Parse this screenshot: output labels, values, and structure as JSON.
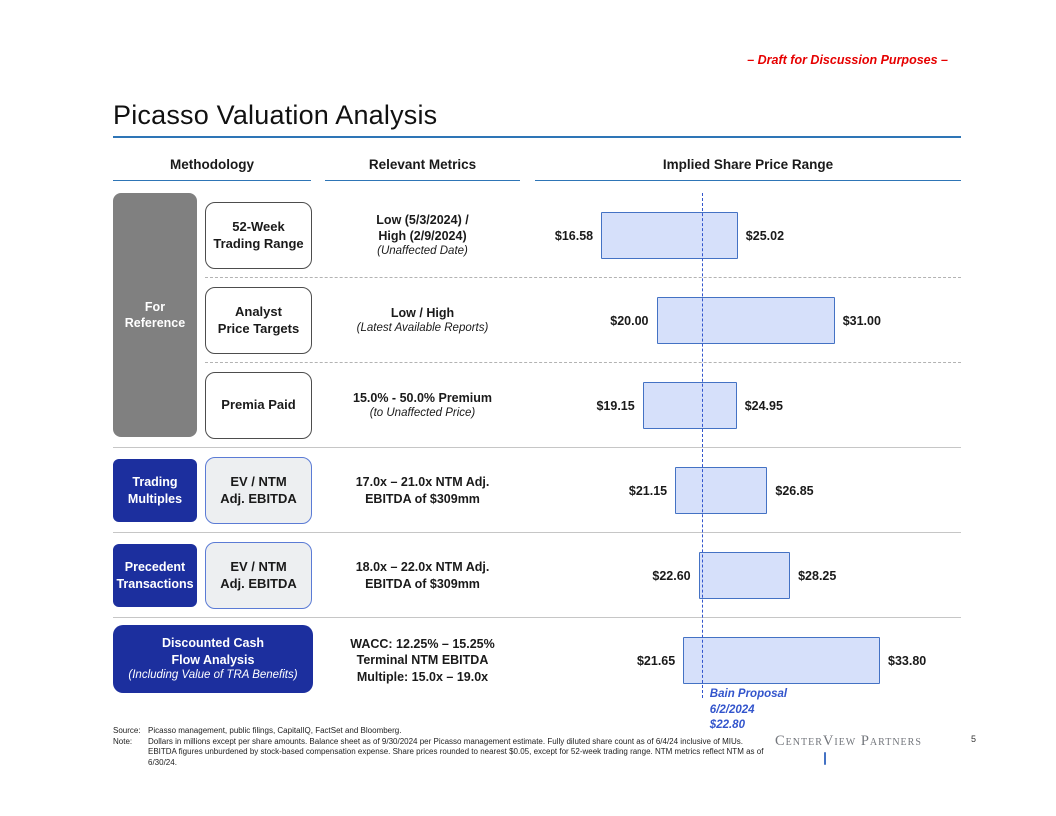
{
  "page": {
    "draft_notice": "– Draft for Discussion Purposes –",
    "title": "Picasso Valuation Analysis",
    "page_number": "5"
  },
  "columns": {
    "methodology": "Methodology",
    "metrics": "Relevant Metrics",
    "range": "Implied Share Price Range"
  },
  "for_reference_label": "For\nReference",
  "rows": [
    {
      "group": "For Reference",
      "method": "52-Week\nTrading Range",
      "metric_main": "Low (5/3/2024) /\nHigh (2/9/2024)",
      "metric_sub": "(Unaffected Date)",
      "low_label": "$16.58",
      "high_label": "$25.02"
    },
    {
      "group": "For Reference",
      "method": "Analyst\nPrice Targets",
      "metric_main": "Low / High",
      "metric_sub": "(Latest Available Reports)",
      "low_label": "$20.00",
      "high_label": "$31.00"
    },
    {
      "group": "For Reference",
      "method": "Premia Paid",
      "metric_main": "15.0% - 50.0% Premium",
      "metric_sub": "(to Unaffected Price)",
      "low_label": "$19.15",
      "high_label": "$24.95"
    },
    {
      "category": "Trading\nMultiples",
      "method": "EV / NTM\nAdj. EBITDA",
      "metric_main": "17.0x – 21.0x NTM Adj.\nEBITDA of $309mm",
      "low_label": "$21.15",
      "high_label": "$26.85"
    },
    {
      "category": "Precedent\nTransactions",
      "method": "EV / NTM\nAdj. EBITDA",
      "metric_main": "18.0x – 22.0x NTM Adj.\nEBITDA of $309mm",
      "low_label": "$22.60",
      "high_label": "$28.25"
    },
    {
      "category_main": "Discounted Cash\nFlow Analysis",
      "category_sub": "(Including Value of TRA Benefits)",
      "metric_main": "WACC: 12.25% – 15.25%\nTerminal NTM EBITDA\nMultiple: 15.0x – 19.0x",
      "low_label": "$21.65",
      "high_label": "$33.80"
    }
  ],
  "chart_data": {
    "type": "bar",
    "subtype": "horizontal-range-football-field",
    "title": "Implied Share Price Range",
    "unit": "$ per share",
    "axis_min": 12.5,
    "axis_max": 38.8,
    "grid": false,
    "categories": [
      "52-Week Trading Range",
      "Analyst Price Targets",
      "Premia Paid",
      "Trading Multiples (EV / NTM Adj. EBITDA)",
      "Precedent Transactions (EV / NTM Adj. EBITDA)",
      "Discounted Cash Flow Analysis"
    ],
    "series": [
      {
        "name": "Implied Share Price Range",
        "ranges": [
          [
            16.58,
            25.02
          ],
          [
            20.0,
            31.0
          ],
          [
            19.15,
            24.95
          ],
          [
            21.15,
            26.85
          ],
          [
            22.6,
            28.25
          ],
          [
            21.65,
            33.8
          ]
        ]
      }
    ],
    "reference_line": {
      "label": "Bain Proposal",
      "date": "6/2/2024",
      "value": 22.8,
      "value_label": "$22.80"
    }
  },
  "footnotes": {
    "source_label": "Source:",
    "source_text": "Picasso management, public filings, CapitalIQ, FactSet and Bloomberg.",
    "note_label": "Note:",
    "note_text": "Dollars in millions except per share amounts. Balance sheet as of 9/30/2024 per Picasso management estimate. Fully diluted share count as of 6/4/24 inclusive of MIUs. EBITDA figures unburdened by stock-based compensation expense. Share prices rounded to nearest $0.05, except for 52-week trading range. NTM metrics reflect NTM as of 6/30/24."
  },
  "logo": {
    "part1": "Center",
    "part2": "View Partners"
  },
  "colors": {
    "accent_blue": "#2e75b6",
    "dark_blue": "#1c2f9e",
    "gray_box": "#808080",
    "bar_fill": "#d6e0fa",
    "bar_border": "#4472c4",
    "proposal_blue": "#3355cc",
    "draft_red": "#e60000"
  }
}
